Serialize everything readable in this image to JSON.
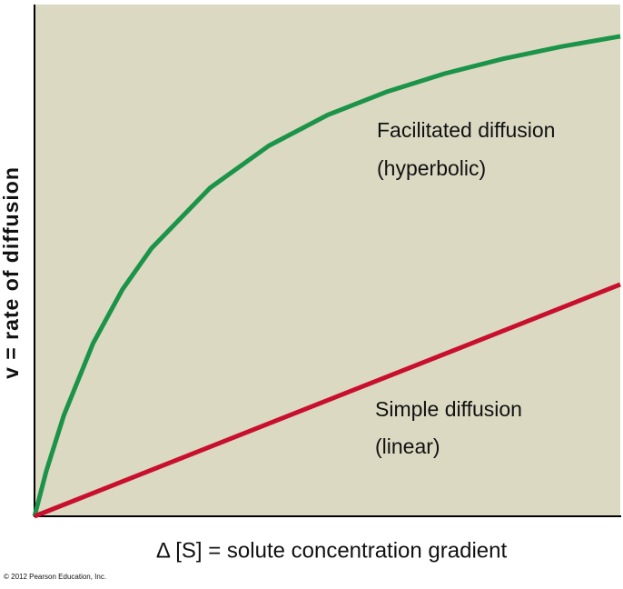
{
  "chart_data": {
    "type": "line",
    "xlabel": "Δ [S] = solute concentration gradient",
    "ylabel": "v = rate of diffusion",
    "credit": "© 2012 Pearson Education, Inc.",
    "xlim": [
      0,
      100
    ],
    "ylim": [
      0,
      100
    ],
    "series": [
      {
        "name": "Facilitated diffusion",
        "annotation": "(hyperbolic)",
        "color": "#1b9349",
        "x": [
          0,
          2,
          5,
          10,
          15,
          20,
          30,
          40,
          50,
          60,
          70,
          80,
          90,
          100
        ],
        "values": [
          0,
          8.8,
          19.7,
          33.8,
          44.3,
          52.4,
          64.2,
          72.4,
          78.4,
          82.9,
          86.5,
          89.4,
          91.8,
          93.8
        ]
      },
      {
        "name": "Simple diffusion",
        "annotation": "(linear)",
        "color": "#c8102e",
        "x": [
          0,
          100
        ],
        "values": [
          0,
          45.3
        ]
      }
    ]
  }
}
